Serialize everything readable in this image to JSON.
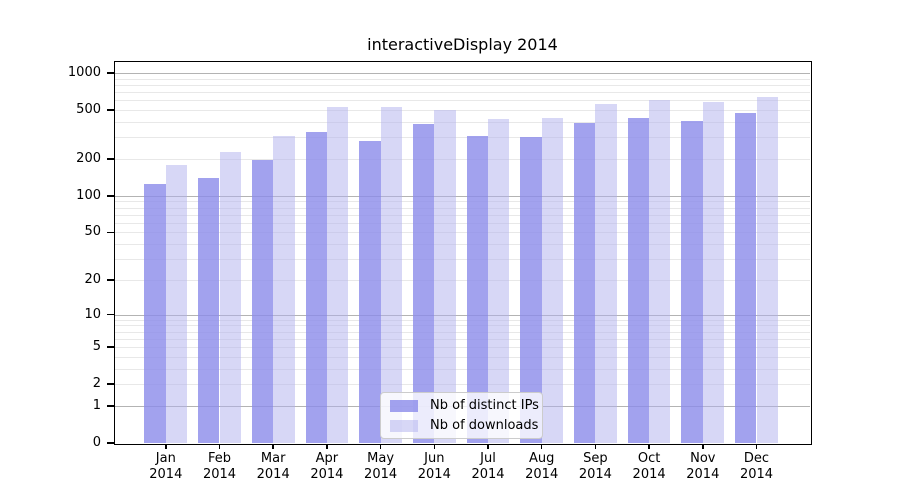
{
  "chart_data": {
    "type": "bar",
    "title": "interactiveDisplay 2014",
    "categories": [
      "Jan",
      "Feb",
      "Mar",
      "Apr",
      "May",
      "Jun",
      "Jul",
      "Aug",
      "Sep",
      "Oct",
      "Nov",
      "Dec"
    ],
    "x_year_label": "2014",
    "series": [
      {
        "name": "Nb of distinct IPs",
        "color": "rgba(139,139,234,0.8)",
        "values": [
          125,
          140,
          195,
          330,
          280,
          385,
          310,
          300,
          390,
          430,
          410,
          475
        ]
      },
      {
        "name": "Nb of downloads",
        "color": "rgba(175,175,237,0.5)",
        "values": [
          180,
          230,
          310,
          530,
          530,
          505,
          420,
          435,
          565,
          610,
          580,
          635
        ]
      }
    ],
    "y_scale": "log10(1+x)",
    "ylim": [
      0,
      1230
    ],
    "y_ticks": [
      0,
      1,
      2,
      5,
      10,
      20,
      50,
      100,
      200,
      500,
      1000
    ],
    "major_gridlines": [
      1,
      10,
      100,
      1000
    ],
    "minor_gridlines": [
      2,
      3,
      4,
      5,
      6,
      7,
      8,
      9,
      20,
      30,
      40,
      50,
      60,
      70,
      80,
      90,
      200,
      300,
      400,
      500,
      600,
      700,
      800,
      900
    ],
    "grid_major_color": "#b3b3b3",
    "grid_minor_color": "#e8e8e8",
    "legend_position": "inside-bottom-center",
    "grid": "on"
  }
}
